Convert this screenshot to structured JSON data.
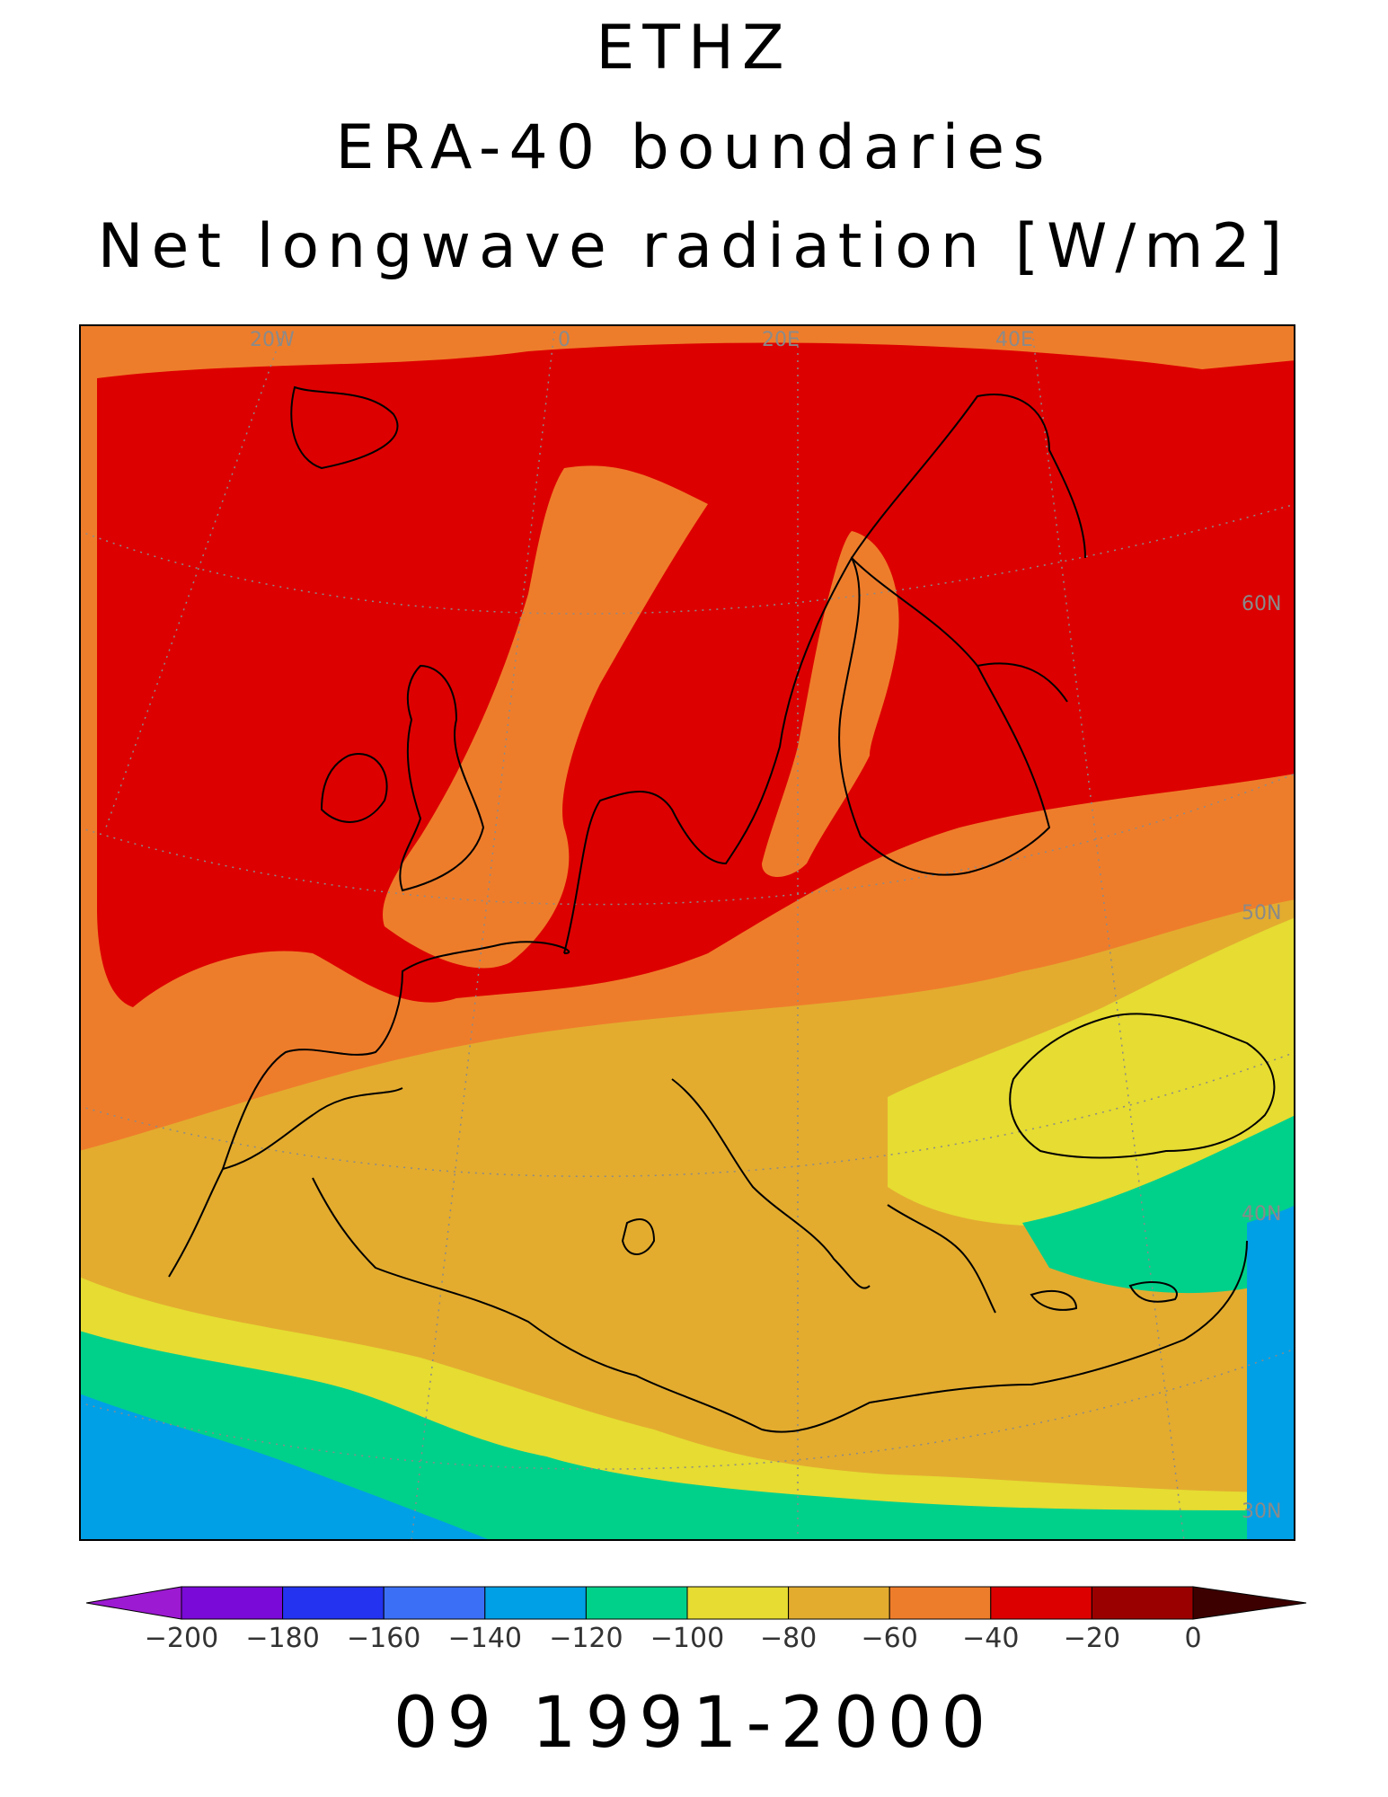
{
  "title": {
    "line1": "ETHZ",
    "line2": "ERA-40 boundaries",
    "line3": "Net longwave radiation [W/m2]"
  },
  "map": {
    "grid_labels": {
      "lon": [
        "20W",
        "0",
        "20E",
        "40E"
      ],
      "lat": [
        "60N",
        "50N",
        "40N",
        "30N"
      ]
    },
    "colors": {
      "c_-200": "#9c1ad2",
      "c_-180": "#7a0ad8",
      "c_-160": "#2333f0",
      "c_-140": "#3b6ff5",
      "c_-120": "#00a0e6",
      "c_-100": "#00d18a",
      "c_-80": "#e6dc32",
      "c_-60": "#e3ac2f",
      "c_-40": "#ee7d2b",
      "c_-20": "#dd0000",
      "c_0": "#9b0000",
      "c_over": "#3c0000"
    }
  },
  "colorbar": {
    "labels": [
      "-200",
      "-180",
      "-160",
      "-140",
      "-120",
      "-100",
      "-80",
      "-60",
      "-40",
      "-20",
      "0"
    ],
    "colors": [
      "#9c1ad2",
      "#7a0ad8",
      "#2333f0",
      "#3b6ff5",
      "#00a0e6",
      "#00d18a",
      "#e6dc32",
      "#e3ac2f",
      "#ee7d2b",
      "#dd0000",
      "#9b0000",
      "#3c0000"
    ]
  },
  "footer": "09 1991-2000"
}
